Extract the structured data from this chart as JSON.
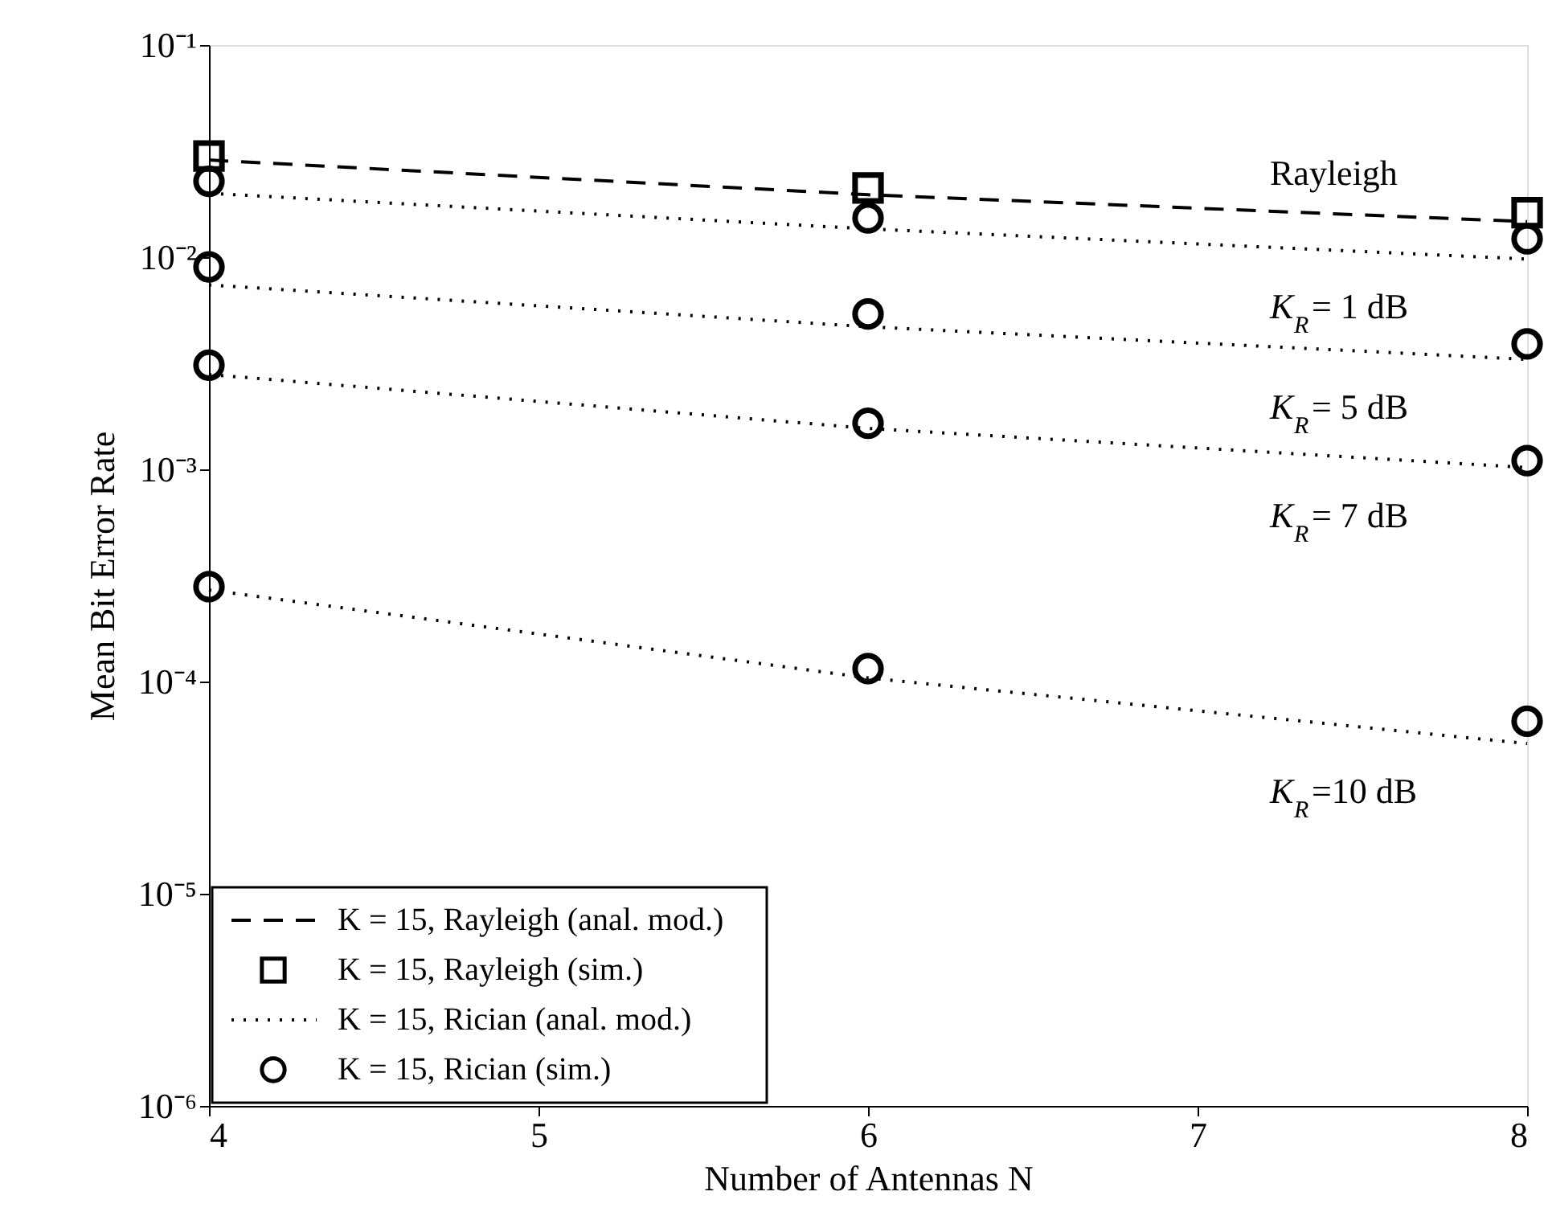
{
  "chart_data": {
    "type": "line",
    "xlabel": "Number of Antennas N",
    "ylabel": "Mean Bit Error Rate",
    "xlim": [
      4,
      8
    ],
    "xticks": [
      4,
      5,
      6,
      7,
      8
    ],
    "ylim": [
      1e-06,
      0.1
    ],
    "yticks": [
      {
        "value": 1e-06,
        "label": "10⁻⁶"
      },
      {
        "value": 1e-05,
        "label": "10⁻⁵"
      },
      {
        "value": 0.0001,
        "label": "10⁻⁴"
      },
      {
        "value": 0.001,
        "label": "10⁻³"
      },
      {
        "value": 0.01,
        "label": "10⁻²"
      },
      {
        "value": 0.1,
        "label": "10⁻¹"
      }
    ],
    "log": "y",
    "grid": false,
    "legend": "bottom left",
    "series": [
      {
        "name": "K = 15, Rayleigh (anal. mod.)",
        "type": "line",
        "line_style": "dashed",
        "marker": "none",
        "color": "#000000",
        "x": [
          4,
          6,
          8
        ],
        "values": [
          0.0287,
          0.0197,
          0.0147
        ]
      },
      {
        "name": "K = 15, Rayleigh (sim.)",
        "type": "scatter",
        "marker": "square",
        "color": "#000000",
        "x": [
          4,
          6,
          8
        ],
        "values": [
          0.03,
          0.0212,
          0.0162
        ]
      },
      {
        "name": "K = 15, Rician (anal. mod.)",
        "type": "line",
        "line_style": "dotted",
        "marker": "none",
        "color": "#000000",
        "x": [
          4,
          6,
          8
        ],
        "values": [
          0.02,
          0.0136,
          0.0098
        ]
      },
      {
        "type": "line",
        "line_style": "dotted",
        "marker": "none",
        "color": "#000000",
        "x": [
          4,
          6,
          8
        ],
        "values": [
          0.0074,
          0.0047,
          0.0033
        ]
      },
      {
        "type": "line",
        "line_style": "dotted",
        "marker": "none",
        "color": "#000000",
        "x": [
          4,
          6,
          8
        ],
        "values": [
          0.0028,
          0.00156,
          0.00102
        ]
      },
      {
        "type": "line",
        "line_style": "dotted",
        "marker": "none",
        "color": "#000000",
        "x": [
          4,
          6,
          8
        ],
        "values": [
          0.00027,
          0.000104,
          5.1e-05
        ]
      },
      {
        "name": "K = 15, Rician (sim.)",
        "type": "scatter",
        "marker": "circle",
        "color": "#000000",
        "x": [
          4,
          6,
          8,
          4,
          6,
          8,
          4,
          6,
          8,
          4,
          6,
          8
        ],
        "values": [
          0.0228,
          0.0153,
          0.0122,
          0.009,
          0.0054,
          0.0039,
          0.0031,
          0.00165,
          0.0011,
          0.00028,
          0.000115,
          6.5e-05
        ]
      }
    ],
    "annotations": [
      "Rayleigh",
      "K$_{R}$= 1 dB",
      "K$_{R}$= 5 dB",
      "K$_{R}$= 7 dB",
      "K$_{R}$=10 dB"
    ]
  }
}
